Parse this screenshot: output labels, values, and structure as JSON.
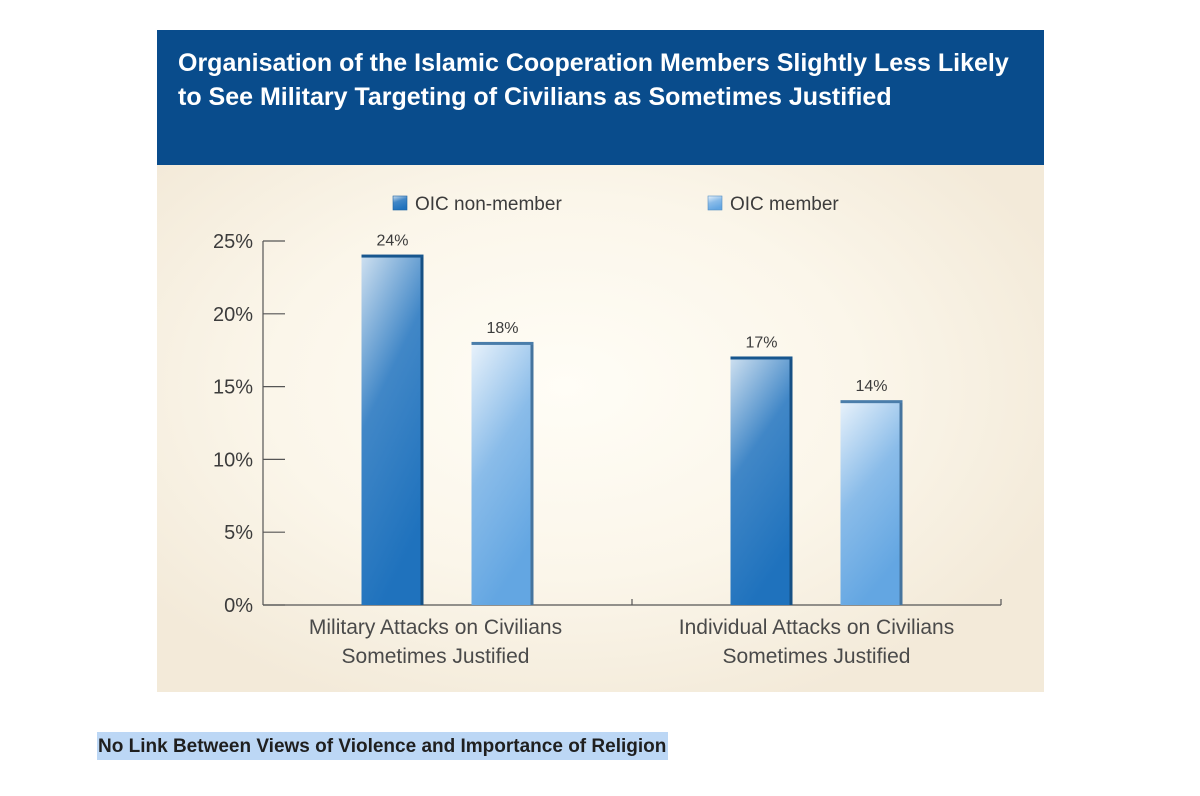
{
  "chart_data": {
    "type": "bar",
    "title": "Organisation of the Islamic Cooperation Members Slightly Less Likely to See Military Targeting of Civilians as Sometimes Justified",
    "categories": [
      [
        "Military Attacks on Civilians",
        "Sometimes Justified"
      ],
      [
        "Individual Attacks on Civilians",
        "Sometimes Justified"
      ]
    ],
    "series": [
      {
        "name": "OIC non-member",
        "values": [
          24,
          17
        ],
        "labels": [
          "24%",
          "17%"
        ],
        "color": "#1f72bd"
      },
      {
        "name": "OIC member",
        "values": [
          18,
          14
        ],
        "labels": [
          "18%",
          "14%"
        ],
        "color": "#63a6e2"
      }
    ],
    "ylim": [
      0,
      25
    ],
    "yticks": [
      "0%",
      "5%",
      "10%",
      "15%",
      "20%",
      "25%"
    ],
    "legend_position": "top",
    "grid": false,
    "colors": {
      "header": "#094c8c",
      "panel": "#f6efe3",
      "axis": "#555555",
      "text": "#3c3c3c"
    }
  },
  "caption": "No Link Between Views of Violence and Importance of Religion"
}
